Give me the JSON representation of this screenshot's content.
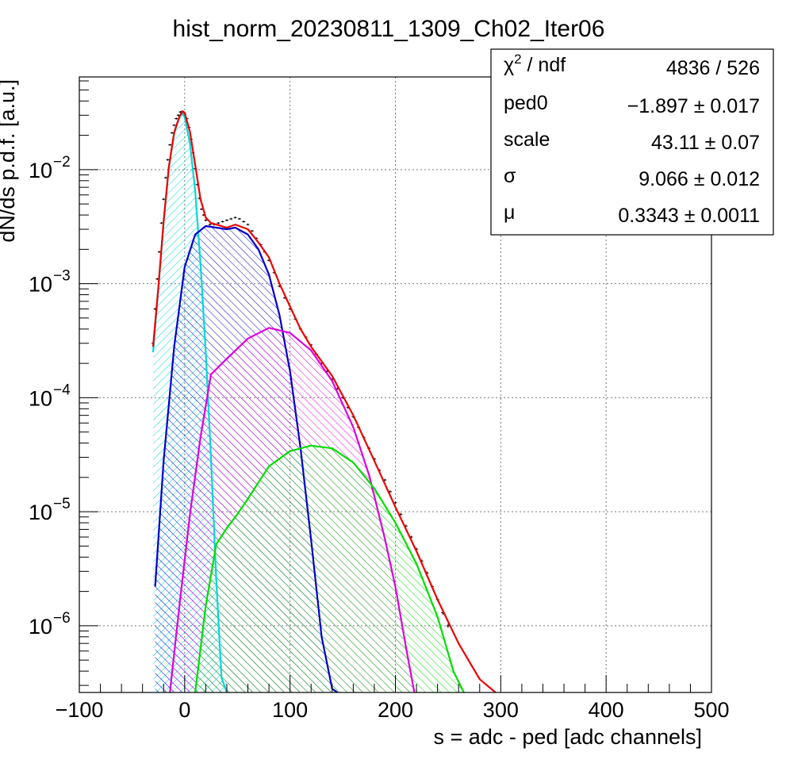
{
  "chart_data": {
    "type": "line",
    "title": "hist_norm_20230811_1309_Ch02_Iter06",
    "xlabel": "s = adc - ped [adc channels]",
    "ylabel": "dN/ds p.d.f. [a.u.]",
    "xlim": [
      -100,
      500
    ],
    "ylim": [
      2.6e-07,
      0.065
    ],
    "yscale": "log",
    "grid": true,
    "x_ticks": [
      -100,
      0,
      100,
      200,
      300,
      400,
      500
    ],
    "x_tick_labels": [
      "−100",
      "0",
      "100",
      "200",
      "300",
      "400",
      "500"
    ],
    "y_ticks": [
      {
        "value": 1e-06,
        "base": "10",
        "exp": "−6"
      },
      {
        "value": 1e-05,
        "base": "10",
        "exp": "−5"
      },
      {
        "value": 0.0001,
        "base": "10",
        "exp": "−4"
      },
      {
        "value": 0.001,
        "base": "10",
        "exp": "−3"
      },
      {
        "value": 0.01,
        "base": "10",
        "exp": "−2"
      }
    ],
    "stats_box": {
      "position": "top-right",
      "rows": [
        {
          "label_main": "χ",
          "label_sup": "2",
          "label_rest": " / ndf",
          "value": "4836 / 526"
        },
        {
          "label_main": "ped0",
          "label_sup": "",
          "label_rest": "",
          "value": "−1.897 ± 0.017"
        },
        {
          "label_main": "scale",
          "label_sup": "",
          "label_rest": "",
          "value": "43.11 ± 0.07"
        },
        {
          "label_main": "σ",
          "label_sup": "",
          "label_rest": "",
          "value": "9.066 ± 0.012"
        },
        {
          "label_main": "μ",
          "label_sup": "",
          "label_rest": "",
          "value": "0.3343 ± 0.0011"
        }
      ]
    },
    "components": [
      {
        "key": "pe0",
        "color": "#00d8d8",
        "x": [
          -30,
          -25,
          -20,
          -15,
          -10,
          -5,
          -2,
          0,
          5,
          10,
          15,
          20,
          25,
          30,
          35,
          40
        ],
        "y": [
          0.00025,
          0.0009,
          0.0035,
          0.0105,
          0.021,
          0.029,
          0.031,
          0.029,
          0.017,
          0.0065,
          0.0015,
          0.00025,
          3e-05,
          2.5e-06,
          3.5e-07,
          2.6e-07
        ]
      },
      {
        "key": "pe1",
        "color": "#0000cc",
        "x": [
          -28,
          -20,
          -10,
          0,
          10,
          20,
          30,
          40,
          48,
          60,
          70,
          80,
          90,
          100,
          110,
          120,
          130,
          140,
          145
        ],
        "y": [
          2.2e-06,
          2.8e-05,
          0.00028,
          0.0014,
          0.0027,
          0.0032,
          0.0031,
          0.003,
          0.0031,
          0.0027,
          0.002,
          0.0012,
          0.00053,
          0.00017,
          3.6e-05,
          5.7e-06,
          8e-07,
          2.8e-07,
          2.6e-07
        ]
      },
      {
        "key": "pe2",
        "color": "#dd00dd",
        "x": [
          -14,
          -5,
          5,
          15,
          25,
          40,
          60,
          80,
          100,
          120,
          140,
          160,
          175,
          190,
          200,
          210,
          218
        ],
        "y": [
          2.6e-07,
          1.5e-06,
          9.5e-06,
          4.5e-05,
          0.00016,
          0.00022,
          0.00033,
          0.00041,
          0.00037,
          0.00026,
          0.00014,
          5.5e-05,
          2.1e-05,
          5.8e-06,
          2.2e-06,
          6.5e-07,
          2.6e-07
        ]
      },
      {
        "key": "pe3",
        "color": "#00dd00",
        "x": [
          10,
          20,
          30,
          40,
          50,
          60,
          80,
          100,
          120,
          140,
          160,
          180,
          200,
          220,
          240,
          255,
          265
        ],
        "y": [
          2.6e-07,
          1.5e-06,
          5.2e-06,
          7.2e-06,
          9.5e-06,
          1.3e-05,
          2.5e-05,
          3.4e-05,
          3.8e-05,
          3.6e-05,
          2.7e-05,
          1.6e-05,
          8e-06,
          3.5e-06,
          1.2e-06,
          4e-07,
          2.6e-07
        ]
      },
      {
        "key": "total",
        "color": "#ee0000",
        "x": [
          -30,
          -25,
          -20,
          -15,
          -10,
          -5,
          -2,
          0,
          5,
          10,
          15,
          20,
          25,
          30,
          40,
          48,
          60,
          70,
          80,
          90,
          100,
          110,
          120,
          140,
          160,
          180,
          200,
          220,
          240,
          260,
          280,
          295
        ],
        "y": [
          0.00028,
          0.00092,
          0.0035,
          0.0106,
          0.0212,
          0.0292,
          0.0325,
          0.0315,
          0.0215,
          0.011,
          0.0055,
          0.0038,
          0.0034,
          0.0033,
          0.0031,
          0.0033,
          0.003,
          0.0023,
          0.0017,
          0.001,
          0.00063,
          0.0004,
          0.00028,
          0.000155,
          7e-05,
          2.8e-05,
          1.1e-05,
          4.5e-06,
          1.7e-06,
          7e-07,
          3.4e-07,
          2.6e-07
        ]
      }
    ],
    "data_points": {
      "color": "#000000",
      "x": [
        -30,
        -28,
        -26,
        -24,
        -22,
        -20,
        -18,
        -16,
        -14,
        -12,
        -10,
        -8,
        -6,
        -4,
        -2,
        0,
        2,
        4,
        6,
        8,
        10,
        12,
        14,
        16,
        18,
        20,
        24,
        28,
        32,
        36,
        40,
        44,
        48,
        52,
        56,
        60,
        64,
        68,
        72,
        76,
        80,
        85,
        90,
        95,
        100,
        105,
        110,
        115,
        120,
        125,
        130,
        135,
        140,
        145,
        150,
        155,
        160,
        165,
        170,
        175,
        180,
        185,
        190,
        195,
        200,
        205,
        210,
        215,
        220,
        225,
        230,
        235,
        240,
        245,
        250
      ],
      "y": [
        0.0003,
        0.0006,
        0.0011,
        0.0019,
        0.0034,
        0.0055,
        0.0085,
        0.0122,
        0.0165,
        0.021,
        0.0245,
        0.028,
        0.03,
        0.032,
        0.0325,
        0.031,
        0.028,
        0.0235,
        0.0185,
        0.014,
        0.0102,
        0.0074,
        0.0056,
        0.0045,
        0.004,
        0.0036,
        0.0033,
        0.0033,
        0.0034,
        0.0035,
        0.0036,
        0.0037,
        0.0038,
        0.0037,
        0.0035,
        0.0033,
        0.0029,
        0.0025,
        0.0022,
        0.0019,
        0.0016,
        0.00125,
        0.00095,
        0.00075,
        0.0006,
        0.00049,
        0.0004,
        0.00034,
        0.00029,
        0.00024,
        0.0002,
        0.00017,
        0.000145,
        0.00012,
        0.0001,
        8.2e-05,
        6.8e-05,
        5.5e-05,
        4.5e-05,
        3.6e-05,
        2.9e-05,
        2.3e-05,
        1.9e-05,
        1.5e-05,
        1.2e-05,
        9.5e-06,
        7.5e-06,
        6e-06,
        4.7e-06,
        3.7e-06,
        2.9e-06,
        2.2e-06,
        1.7e-06,
        1.3e-06,
        1e-06
      ]
    }
  }
}
